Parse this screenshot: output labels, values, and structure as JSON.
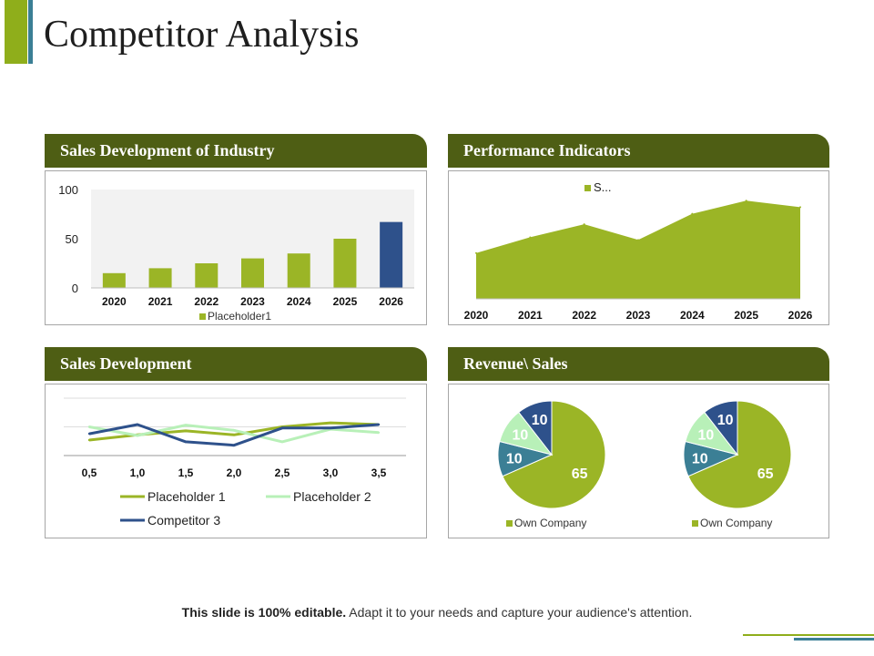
{
  "title": "Competitor Analysis",
  "panels": {
    "industry": "Sales Development  of Industry",
    "performance": "Performance Indicators",
    "sales": "Sales Development",
    "revenue": "Revenue\\ Sales"
  },
  "footer": {
    "bold": "This slide is 100% editable.",
    "text": " Adapt it to your needs and capture your audience's attention."
  },
  "colors": {
    "olive": "#9bb526",
    "navy": "#2e518b",
    "teal": "#3b7f95",
    "light_green": "#b8f0b8",
    "header": "#4e5e14"
  },
  "chart_data": [
    {
      "type": "bar",
      "title": "",
      "categories": [
        "2020",
        "2021",
        "2022",
        "2023",
        "2024",
        "2025",
        "2026"
      ],
      "values": [
        15,
        20,
        25,
        30,
        35,
        50,
        67
      ],
      "series_name": "Placeholder1",
      "ylim": [
        0,
        100
      ],
      "yticks": [
        0,
        50,
        100
      ],
      "highlight_last_color": "#2e518b",
      "grid": false,
      "legend": "bottom"
    },
    {
      "type": "area",
      "categories": [
        "2020",
        "2021",
        "2022",
        "2023",
        "2024",
        "2025",
        "2026"
      ],
      "values": [
        35,
        47,
        57,
        45,
        65,
        75,
        70
      ],
      "ylim": [
        0,
        80
      ],
      "series_name": "S...",
      "legend": "top"
    },
    {
      "type": "line",
      "x": [
        "0,5",
        "1,0",
        "1,5",
        "2,0",
        "2,5",
        "3,0",
        "3,5"
      ],
      "ylim": [
        0,
        10
      ],
      "grid": true,
      "series": [
        {
          "name": "Placeholder 1",
          "color": "#9bb526",
          "values": [
            2.7,
            3.6,
            4.3,
            3.6,
            5.0,
            5.7,
            5.4
          ]
        },
        {
          "name": "Placeholder 2",
          "color": "#b8f0b8",
          "values": [
            5.0,
            3.5,
            5.3,
            4.4,
            2.4,
            4.6,
            4.0
          ]
        },
        {
          "name": "Competitor 3",
          "color": "#2e518b",
          "values": [
            3.8,
            5.4,
            2.4,
            1.8,
            4.8,
            4.8,
            5.4
          ]
        }
      ],
      "legend": "bottom"
    },
    {
      "type": "pie",
      "series_name": "Own Company",
      "slices": [
        {
          "label": "65",
          "value": 65,
          "color": "#9bb526"
        },
        {
          "label": "10",
          "value": 10,
          "color": "#3b7f95"
        },
        {
          "label": "10",
          "value": 10,
          "color": "#b8f0b8"
        },
        {
          "label": "10",
          "value": 10,
          "color": "#2e518b"
        }
      ],
      "legend": "bottom"
    },
    {
      "type": "pie",
      "series_name": "Own Company",
      "slices": [
        {
          "label": "65",
          "value": 65,
          "color": "#9bb526"
        },
        {
          "label": "10",
          "value": 10,
          "color": "#3b7f95"
        },
        {
          "label": "10",
          "value": 10,
          "color": "#b8f0b8"
        },
        {
          "label": "10",
          "value": 10,
          "color": "#2e518b"
        }
      ],
      "legend": "bottom"
    }
  ]
}
